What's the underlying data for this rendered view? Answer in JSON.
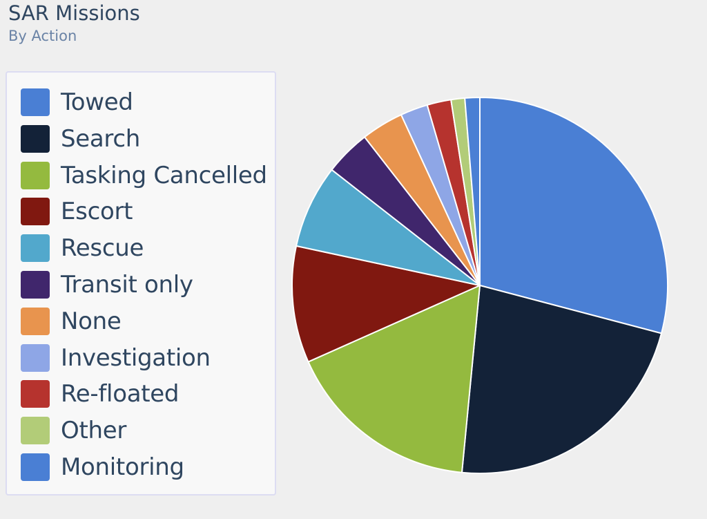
{
  "chart_data": {
    "type": "pie",
    "title": "SAR Missions",
    "subtitle": "By Action",
    "legend_position": "left",
    "slices": [
      {
        "label": "Towed",
        "value": 29.6,
        "color": "#4a7fd4"
      },
      {
        "label": "Search",
        "value": 22.8,
        "color": "#132238"
      },
      {
        "label": "Tasking Cancelled",
        "value": 17.1,
        "color": "#94ba3f"
      },
      {
        "label": "Escort",
        "value": 10.2,
        "color": "#801810"
      },
      {
        "label": "Rescue",
        "value": 7.3,
        "color": "#52a8cc"
      },
      {
        "label": "Transit only",
        "value": 4.0,
        "color": "#40266c"
      },
      {
        "label": "None",
        "value": 3.7,
        "color": "#e8944e"
      },
      {
        "label": "Investigation",
        "value": 2.4,
        "color": "#8ea6e6"
      },
      {
        "label": "Re-floated",
        "value": 2.1,
        "color": "#b6332e"
      },
      {
        "label": "Other",
        "value": 1.2,
        "color": "#b2cc78"
      },
      {
        "label": "Monitoring",
        "value": 1.3,
        "color": "#4a7fd4"
      }
    ]
  }
}
